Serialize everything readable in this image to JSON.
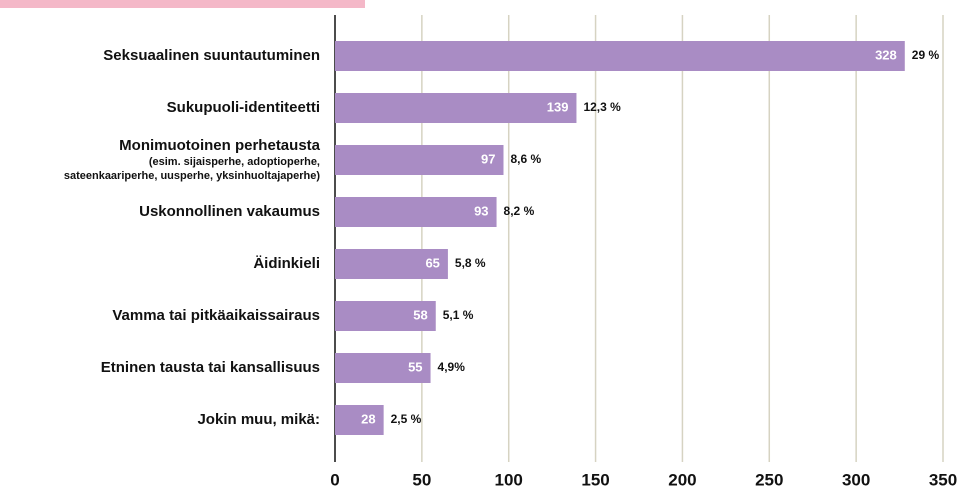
{
  "chart_data": {
    "type": "barh",
    "categories": [
      "Seksuaalinen suuntautuminen",
      "Sukupuoli-identiteetti",
      "Monimuotoinen perhetausta",
      "Uskonnollinen vakaumus",
      "Äidinkieli",
      "Vamma tai pitkäaikaissairaus",
      "Etninen tausta tai kansallisuus",
      "Jokin muu, mikä:"
    ],
    "category_sublabels": [
      null,
      null,
      [
        "(esim. sijaisperhe, adoptioperhe,",
        "sateenkaariperhe, uusperhe, yksinhuoltajaperhe)"
      ],
      null,
      null,
      null,
      null,
      null
    ],
    "values": [
      328,
      139,
      97,
      93,
      65,
      58,
      55,
      28
    ],
    "shares": [
      29,
      12.3,
      8.6,
      8.2,
      5.8,
      5.1,
      4.9,
      2.5
    ],
    "share_labels": [
      "29 %",
      "12,3 %",
      "8,6 %",
      "8,2 %",
      "5,8 %",
      "5,1 %",
      "4,9%",
      "2,5 %"
    ],
    "color": "#a98cc4",
    "xlim": [
      0,
      350
    ],
    "xticks": [
      0,
      50,
      100,
      150,
      200,
      250,
      300,
      350
    ],
    "grid": true
  }
}
